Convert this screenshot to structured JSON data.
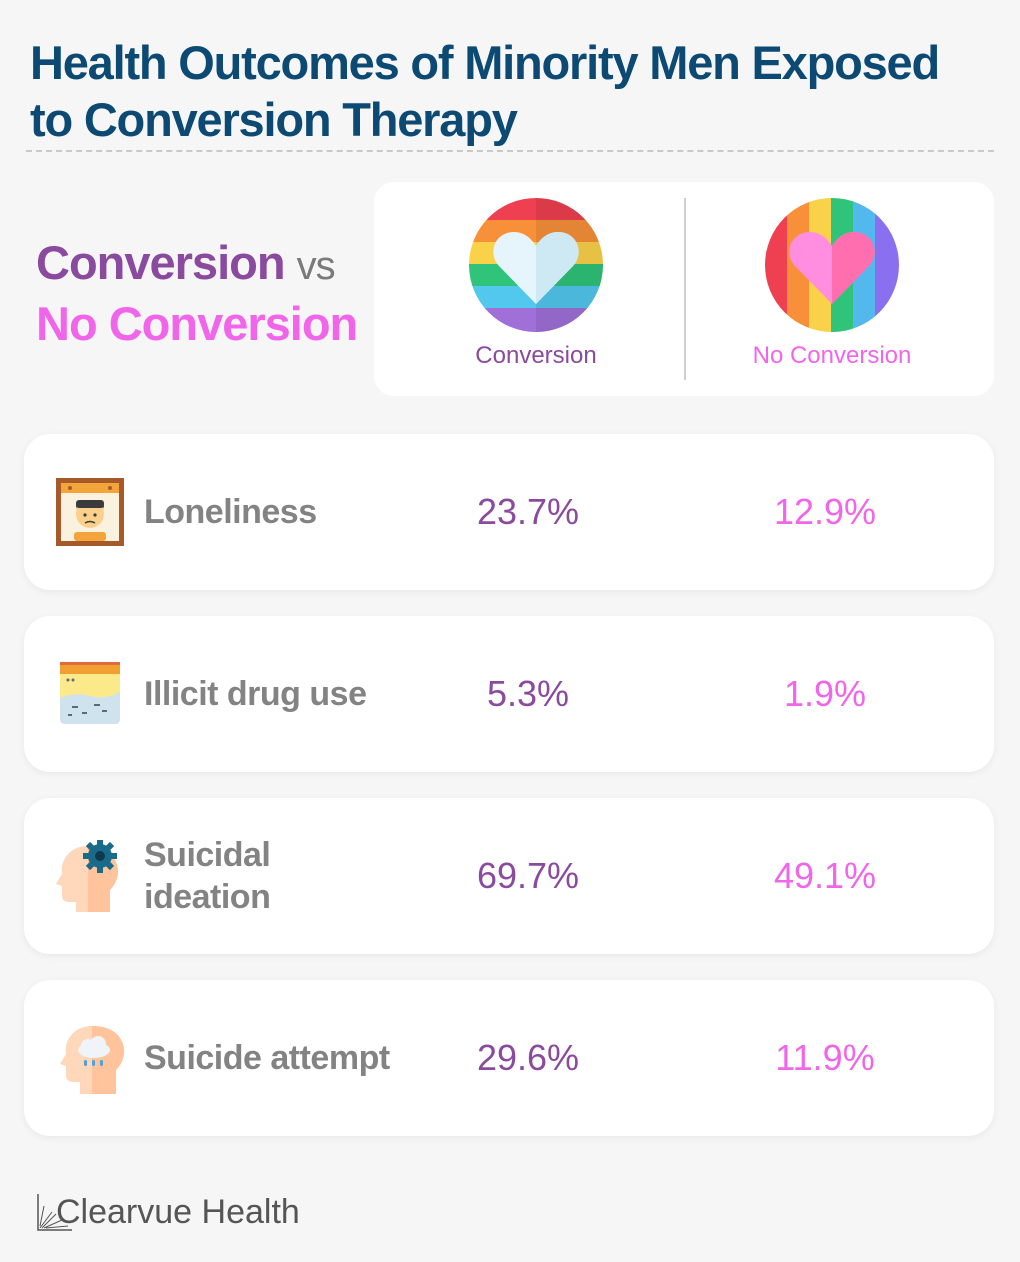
{
  "title": "Health Outcomes of Minority Men Exposed to Conversion Therapy",
  "comparison": {
    "conversion_label": "Conversion",
    "vs_label": "vs",
    "no_conversion_label": "No Conversion"
  },
  "legend": {
    "conversion": "Conversion",
    "no_conversion": "No Conversion"
  },
  "rows": [
    {
      "label": "Loneliness",
      "icon": "lonely-person-icon",
      "conversion": "23.7%",
      "no_conversion": "12.9%"
    },
    {
      "label": "Illicit drug use",
      "icon": "powder-drug-icon",
      "conversion": "5.3%",
      "no_conversion": "1.9%"
    },
    {
      "label": "Suicidal ideation",
      "icon": "head-gear-icon",
      "conversion": "69.7%",
      "no_conversion": "49.1%"
    },
    {
      "label": "Suicide attempt",
      "icon": "head-rain-cloud-icon",
      "conversion": "29.6%",
      "no_conversion": "11.9%"
    }
  ],
  "brand": "Clearvue Health",
  "colors": {
    "title": "#0c4a73",
    "conversion": "#8a4a9e",
    "no_conversion": "#f165ea",
    "label": "#838383"
  }
}
